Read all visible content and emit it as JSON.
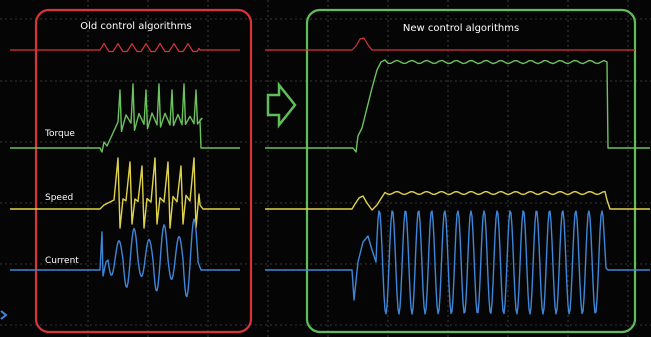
{
  "panels": {
    "old_title": "Old control algorithms",
    "new_title": "New control algorithms"
  },
  "chart_data": {
    "type": "line",
    "title": "",
    "xlabel": "",
    "ylabel": "",
    "grid": true,
    "legend": "none",
    "trace_labels": [
      "Torque",
      "Speed",
      "Current"
    ],
    "colors": {
      "background": "#050505",
      "grid": "#4a4a4a",
      "old_frame": "#d9333a",
      "new_frame": "#5fbe5a",
      "arrow": "#5fbe5a",
      "trigger": "#d9333a",
      "torque": "#6cc25e",
      "speed": "#e0d24a",
      "current": "#3f86d6"
    },
    "series": [
      {
        "name": "Torque",
        "panel": "old",
        "behavior": "oscillating sawtooth",
        "peaks": 7
      },
      {
        "name": "Speed",
        "panel": "old",
        "behavior": "sharp oscillating spikes",
        "peaks": 7
      },
      {
        "name": "Current",
        "panel": "old",
        "behavior": "irregular oscillation",
        "peaks": 6
      },
      {
        "name": "Torque",
        "panel": "new",
        "behavior": "smooth step rise to steady plateau"
      },
      {
        "name": "Speed",
        "panel": "new",
        "behavior": "small bump then steady level"
      },
      {
        "name": "Current",
        "panel": "new",
        "behavior": "uniform sinusoid",
        "cycles": 17
      }
    ]
  }
}
